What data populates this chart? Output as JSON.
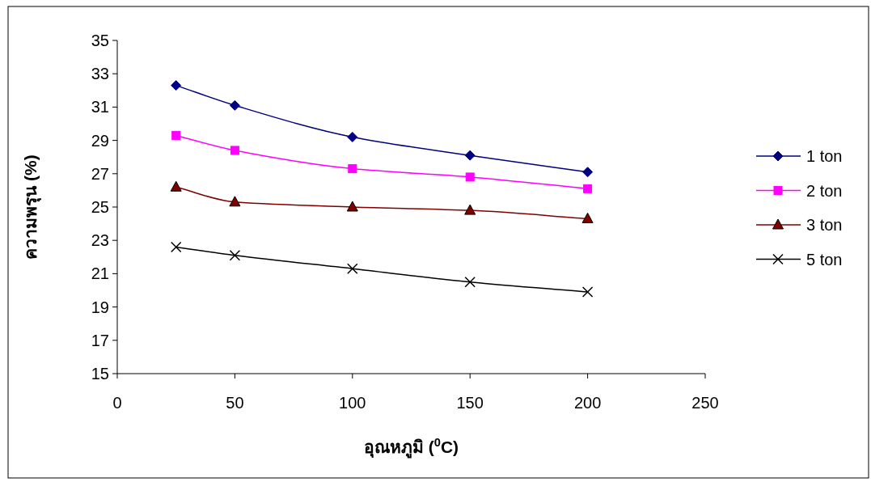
{
  "chart_data": {
    "type": "line",
    "xlabel": "อุณหภูมิ ($^{0}$C)",
    "ylabel": "ความพรุน (%)",
    "x": [
      25,
      50,
      100,
      150,
      200
    ],
    "series": [
      {
        "name": "1 ton",
        "color": "#000080",
        "marker": "diamond",
        "values": [
          32.3,
          31.1,
          29.2,
          28.1,
          27.1
        ]
      },
      {
        "name": "2 ton",
        "color": "#ff00ff",
        "marker": "square",
        "values": [
          29.3,
          28.4,
          27.3,
          26.8,
          26.1
        ]
      },
      {
        "name": "3 ton",
        "color": "#800000",
        "marker": "triangle",
        "values": [
          26.2,
          25.3,
          25.0,
          24.8,
          24.3
        ]
      },
      {
        "name": "5 ton",
        "color": "#000000",
        "marker": "cross",
        "values": [
          22.6,
          22.1,
          21.3,
          20.5,
          19.9
        ]
      }
    ],
    "xlim": [
      0,
      250
    ],
    "xticks": [
      0,
      50,
      100,
      150,
      200,
      250
    ],
    "ylim": [
      15,
      35
    ],
    "yticks": [
      15,
      17,
      19,
      21,
      23,
      25,
      27,
      29,
      31,
      33,
      35
    ],
    "grid": false,
    "legend": "right",
    "line_style": "solid"
  }
}
